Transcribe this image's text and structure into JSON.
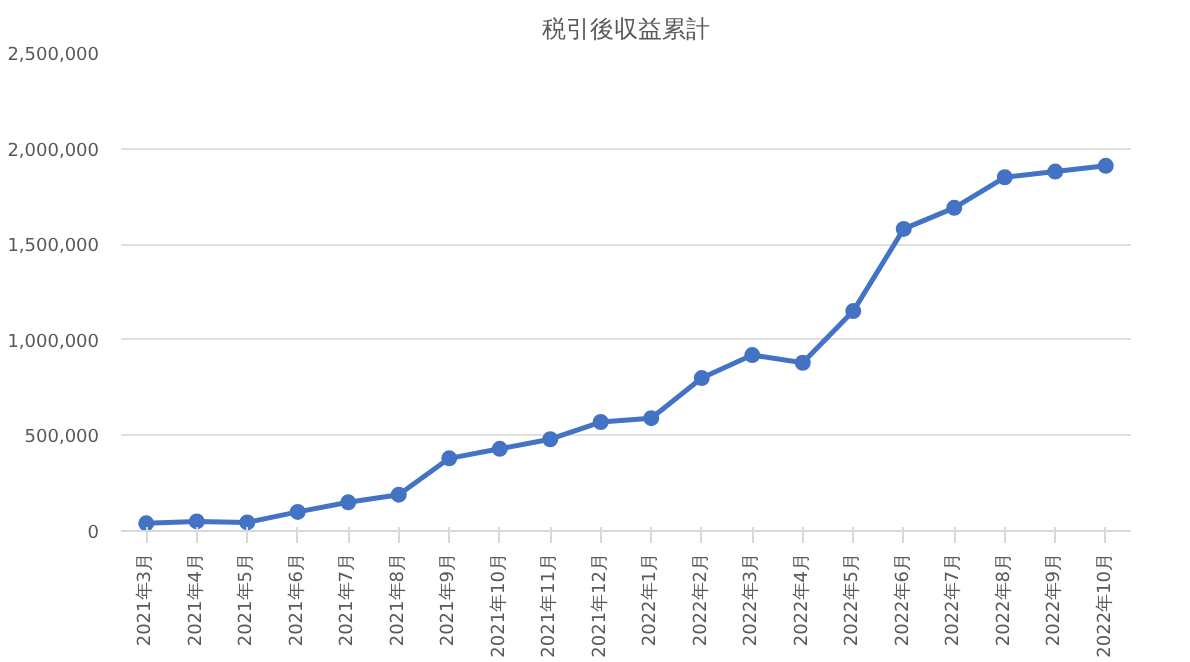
{
  "chart_data": {
    "type": "line",
    "title": "税引後収益累計",
    "categories": [
      "2021年3月",
      "2021年4月",
      "2021年5月",
      "2021年6月",
      "2021年7月",
      "2021年8月",
      "2021年9月",
      "2021年10月",
      "2021年11月",
      "2021年12月",
      "2022年1月",
      "2022年2月",
      "2022年3月",
      "2022年4月",
      "2022年5月",
      "2022年6月",
      "2022年7月",
      "2022年8月",
      "2022年9月",
      "2022年10月"
    ],
    "series": [
      {
        "color": "#4472c4",
        "values": [
          40000,
          50000,
          45000,
          100000,
          150000,
          190000,
          380000,
          430000,
          480000,
          570000,
          590000,
          800000,
          920000,
          880000,
          1150000,
          1580000,
          1690000,
          1850000,
          1880000,
          1910000
        ]
      }
    ],
    "ylim": [
      0,
      2500000
    ],
    "yticks": [
      {
        "value": 0,
        "label": "0"
      },
      {
        "value": 500000,
        "label": "500,000"
      },
      {
        "value": 1000000,
        "label": "1,000,000"
      },
      {
        "value": 1500000,
        "label": "1,500,000"
      },
      {
        "value": 2000000,
        "label": "2,000,000"
      },
      {
        "value": 2500000,
        "label": "2,500,000"
      }
    ],
    "grid": "y",
    "marker": "circle",
    "line_style": "solid"
  }
}
